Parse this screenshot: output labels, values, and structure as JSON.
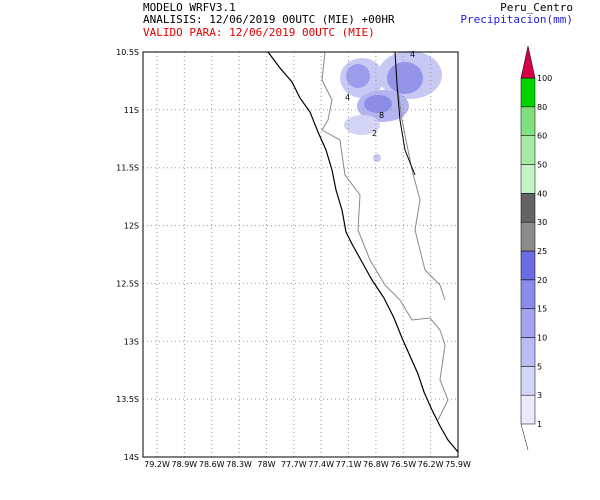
{
  "header": {
    "model": "MODELO WRFV3.1",
    "analysis": "ANALISIS: 12/06/2019 00UTC (MIE) +00HR",
    "valid": "VALIDO PARA: 12/06/2019 00UTC (MIE)",
    "region": "Peru_Centro",
    "variable": "Precipitacion(mm)"
  },
  "map": {
    "lat_labels": [
      "10.5S",
      "11S",
      "11.5S",
      "12S",
      "12.5S",
      "13S",
      "13.5S",
      "14S"
    ],
    "lon_labels": [
      "79.2W",
      "78.9W",
      "78.6W",
      "78.3W",
      "78W",
      "77.7W",
      "77.4W",
      "77.1W",
      "76.8W",
      "76.5W",
      "76.2W",
      "75.9W"
    ],
    "contour_labels": [
      "4",
      "4",
      "2",
      "8"
    ]
  },
  "colorbar": {
    "labels": [
      "1",
      "3",
      "5",
      "10",
      "15",
      "20",
      "25",
      "30",
      "40",
      "50",
      "60",
      "80",
      "100"
    ],
    "colors": [
      "#eaeafa",
      "#d4d4f6",
      "#bcbcf2",
      "#a4a4ee",
      "#8c8cea",
      "#6c6ce2",
      "#8a8a8a",
      "#646464",
      "#c4f2c4",
      "#a4eaa4",
      "#80e080",
      "#00d400"
    ],
    "top_color": "#d4004c"
  }
}
